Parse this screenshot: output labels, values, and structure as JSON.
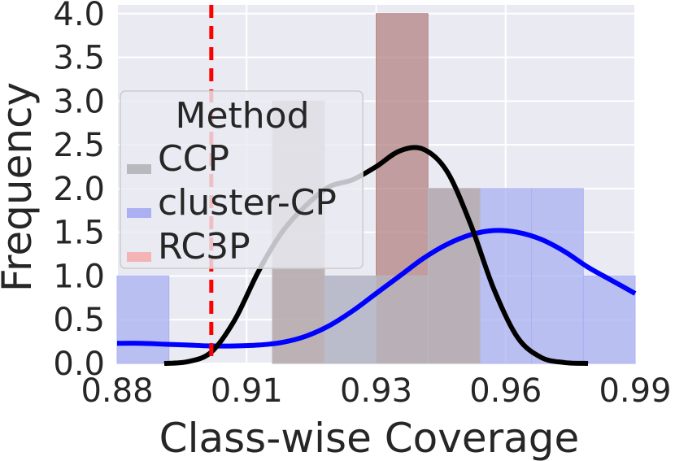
{
  "chart_data": {
    "type": "histogram",
    "xlabel": "Class-wise Coverage",
    "ylabel": "Frequency",
    "xlim": [
      0.88,
      0.99
    ],
    "ylim": [
      0,
      4.1
    ],
    "x_ticks": [
      {
        "value": 0.88,
        "label": "0.88"
      },
      {
        "value": 0.9075,
        "label": "0.91"
      },
      {
        "value": 0.935,
        "label": "0.93"
      },
      {
        "value": 0.9625,
        "label": "0.96"
      },
      {
        "value": 0.99,
        "label": "0.99"
      }
    ],
    "y_ticks": [
      {
        "value": 0.0,
        "label": "0.0"
      },
      {
        "value": 0.5,
        "label": "0.5"
      },
      {
        "value": 1.0,
        "label": "1.0"
      },
      {
        "value": 1.5,
        "label": "1.5"
      },
      {
        "value": 2.0,
        "label": "2.0"
      },
      {
        "value": 2.5,
        "label": "2.5"
      },
      {
        "value": 3.0,
        "label": "3.0"
      },
      {
        "value": 3.5,
        "label": "3.5"
      },
      {
        "value": 4.0,
        "label": "4.0"
      }
    ],
    "grid": true,
    "background": "#eaeaf2",
    "reference_line": {
      "x": 0.9,
      "color": "#ff0000",
      "style": "dashed"
    },
    "legend": {
      "title": "Method",
      "placement": "upper-left",
      "entries": [
        "CCP",
        "cluster-CP",
        "RC3P"
      ]
    },
    "series": [
      {
        "name": "cluster-CP",
        "color": "#0000ff",
        "hist_color": "#aab0f2",
        "bins": [
          {
            "x0": 0.88,
            "x1": 0.891,
            "count": 1
          },
          {
            "x0": 0.891,
            "x1": 0.902,
            "count": 0
          },
          {
            "x0": 0.902,
            "x1": 0.913,
            "count": 0
          },
          {
            "x0": 0.913,
            "x1": 0.924,
            "count": 0
          },
          {
            "x0": 0.924,
            "x1": 0.935,
            "count": 1
          },
          {
            "x0": 0.935,
            "x1": 0.946,
            "count": 1
          },
          {
            "x0": 0.946,
            "x1": 0.957,
            "count": 2
          },
          {
            "x0": 0.957,
            "x1": 0.968,
            "count": 2
          },
          {
            "x0": 0.968,
            "x1": 0.979,
            "count": 2
          },
          {
            "x0": 0.979,
            "x1": 0.99,
            "count": 1
          }
        ],
        "kde": [
          [
            0.88,
            0.23
          ],
          [
            0.885,
            0.23
          ],
          [
            0.89,
            0.22
          ],
          [
            0.895,
            0.21
          ],
          [
            0.9,
            0.2
          ],
          [
            0.905,
            0.2
          ],
          [
            0.91,
            0.21
          ],
          [
            0.915,
            0.24
          ],
          [
            0.92,
            0.31
          ],
          [
            0.925,
            0.43
          ],
          [
            0.93,
            0.6
          ],
          [
            0.935,
            0.8
          ],
          [
            0.94,
            1.0
          ],
          [
            0.945,
            1.2
          ],
          [
            0.95,
            1.36
          ],
          [
            0.955,
            1.47
          ],
          [
            0.96,
            1.52
          ],
          [
            0.965,
            1.5
          ],
          [
            0.97,
            1.42
          ],
          [
            0.975,
            1.28
          ],
          [
            0.98,
            1.1
          ],
          [
            0.985,
            0.95
          ],
          [
            0.99,
            0.8
          ]
        ]
      },
      {
        "name": "RC3P",
        "color": "#ff0000",
        "hist_color": "#b38383",
        "bins": [
          {
            "x0": 0.913,
            "x1": 0.924,
            "count": 3
          },
          {
            "x0": 0.924,
            "x1": 0.935,
            "count": 0
          },
          {
            "x0": 0.935,
            "x1": 0.946,
            "count": 4
          },
          {
            "x0": 0.946,
            "x1": 0.957,
            "count": 2
          }
        ]
      },
      {
        "name": "CCP",
        "color": "#000000",
        "hist_color": "#b9b9bd",
        "bins": [
          {
            "x0": 0.913,
            "x1": 0.924,
            "count": 3
          },
          {
            "x0": 0.924,
            "x1": 0.935,
            "count": 1
          },
          {
            "x0": 0.935,
            "x1": 0.946,
            "count": 1
          },
          {
            "x0": 0.946,
            "x1": 0.957,
            "count": 2
          }
        ],
        "kde": [
          [
            0.89,
            0.0
          ],
          [
            0.895,
            0.02
          ],
          [
            0.9,
            0.13
          ],
          [
            0.905,
            0.5
          ],
          [
            0.91,
            1.05
          ],
          [
            0.915,
            1.5
          ],
          [
            0.92,
            1.8
          ],
          [
            0.925,
            2.02
          ],
          [
            0.93,
            2.1
          ],
          [
            0.935,
            2.25
          ],
          [
            0.94,
            2.43
          ],
          [
            0.945,
            2.45
          ],
          [
            0.95,
            2.2
          ],
          [
            0.955,
            1.6
          ],
          [
            0.96,
            0.85
          ],
          [
            0.965,
            0.3
          ],
          [
            0.97,
            0.07
          ],
          [
            0.975,
            0.01
          ],
          [
            0.98,
            0.0
          ]
        ]
      }
    ]
  }
}
